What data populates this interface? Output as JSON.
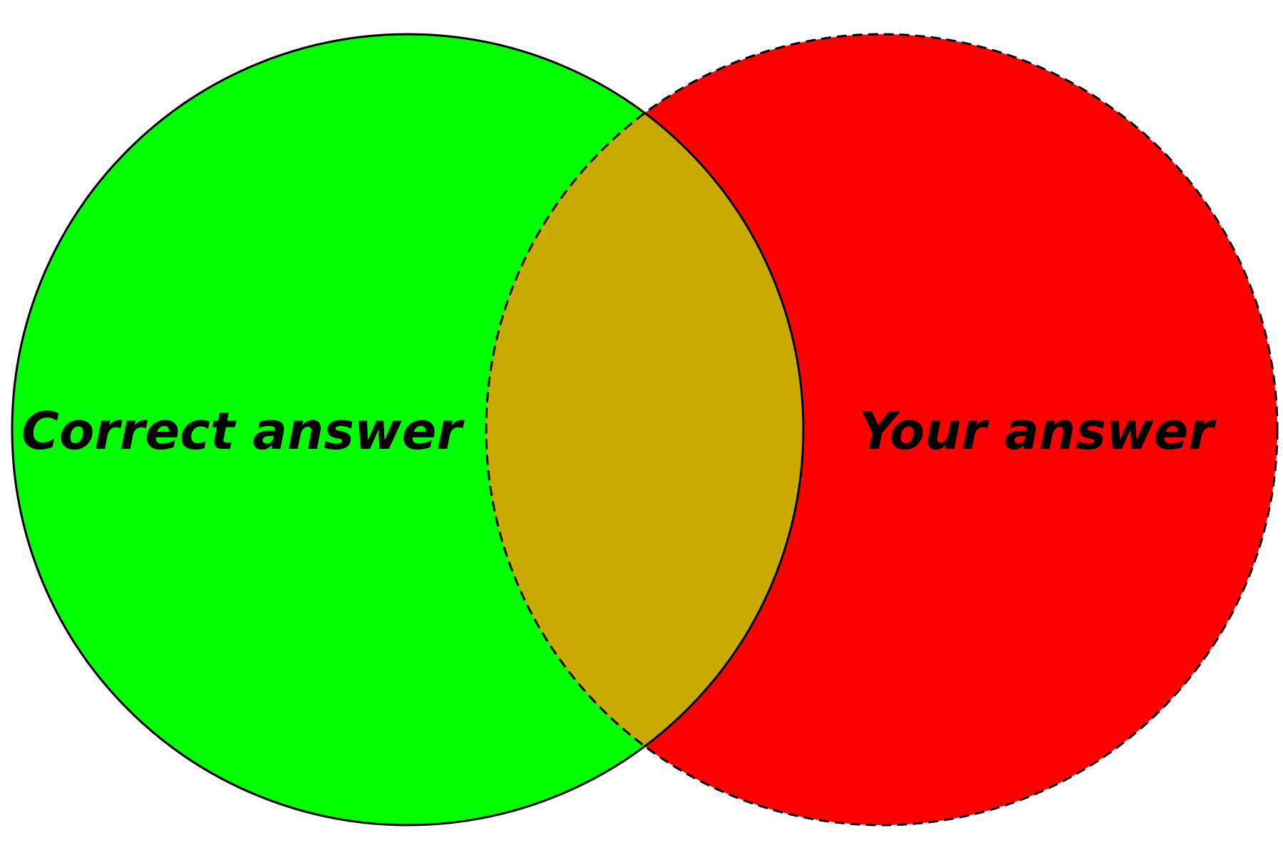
{
  "diagram": {
    "type": "venn",
    "left_set": {
      "label": "Correct answer",
      "color": "#00ff00",
      "outline": "solid"
    },
    "right_set": {
      "label": "Your answer",
      "color": "#ff0000",
      "outline": "dashed"
    },
    "overlap": {
      "color": "#c8aa00"
    }
  }
}
